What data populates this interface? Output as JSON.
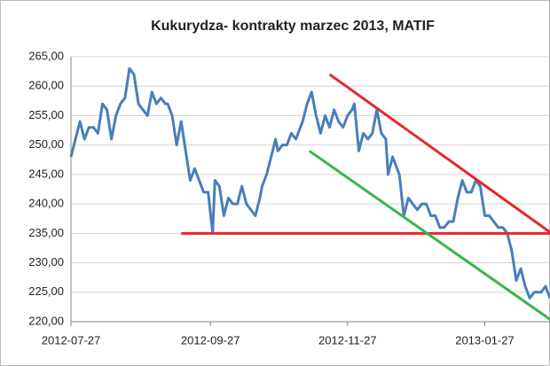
{
  "chart_data": {
    "type": "line",
    "title": "Kukurydza- kontrakty marzec 2013, MATIF",
    "ylim": [
      220,
      265
    ],
    "yticks": [
      {
        "value": 220,
        "label": "220,00"
      },
      {
        "value": 225,
        "label": "225,00"
      },
      {
        "value": 230,
        "label": "230,00"
      },
      {
        "value": 235,
        "label": "235,00"
      },
      {
        "value": 240,
        "label": "240,00"
      },
      {
        "value": 245,
        "label": "245,00"
      },
      {
        "value": 250,
        "label": "250,00"
      },
      {
        "value": 255,
        "label": "255,00"
      },
      {
        "value": 260,
        "label": "260,00"
      },
      {
        "value": 265,
        "label": "265,00"
      }
    ],
    "xlim": [
      "2012-07-27",
      "2013-02-25"
    ],
    "xticks": [
      "2012-07-27",
      "2012-09-27",
      "2012-11-27",
      "2013-01-27"
    ],
    "grid": true,
    "series": [
      {
        "color": "#4a7ebb",
        "x": [
          "2012-07-27",
          "2012-07-29",
          "2012-07-31",
          "2012-08-02",
          "2012-08-04",
          "2012-08-06",
          "2012-08-08",
          "2012-08-10",
          "2012-08-12",
          "2012-08-14",
          "2012-08-16",
          "2012-08-18",
          "2012-08-20",
          "2012-08-22",
          "2012-08-24",
          "2012-08-26",
          "2012-08-28",
          "2012-08-30",
          "2012-09-01",
          "2012-09-03",
          "2012-09-05",
          "2012-09-07",
          "2012-09-08",
          "2012-09-10",
          "2012-09-12",
          "2012-09-14",
          "2012-09-16",
          "2012-09-18",
          "2012-09-20",
          "2012-09-22",
          "2012-09-24",
          "2012-09-26",
          "2012-09-28",
          "2012-09-29",
          "2012-10-01",
          "2012-10-03",
          "2012-10-05",
          "2012-10-07",
          "2012-10-09",
          "2012-10-11",
          "2012-10-13",
          "2012-10-15",
          "2012-10-17",
          "2012-10-19",
          "2012-10-20",
          "2012-10-22",
          "2012-10-24",
          "2012-10-26",
          "2012-10-27",
          "2012-10-29",
          "2012-10-31",
          "2012-11-02",
          "2012-11-04",
          "2012-11-07",
          "2012-11-09",
          "2012-11-11",
          "2012-11-13",
          "2012-11-15",
          "2012-11-17",
          "2012-11-19",
          "2012-11-21",
          "2012-11-23",
          "2012-11-25",
          "2012-11-27",
          "2012-11-29",
          "2012-11-30",
          "2012-12-02",
          "2012-12-04",
          "2012-12-06",
          "2012-12-08",
          "2012-12-10",
          "2012-12-12",
          "2012-12-14",
          "2012-12-15",
          "2012-12-17",
          "2012-12-19",
          "2012-12-20",
          "2012-12-22",
          "2012-12-24",
          "2012-12-26",
          "2012-12-28",
          "2012-12-30",
          "2013-01-01",
          "2013-01-03",
          "2013-01-05",
          "2013-01-07",
          "2013-01-09",
          "2013-01-11",
          "2013-01-13",
          "2013-01-15",
          "2013-01-17",
          "2013-01-19",
          "2013-01-21",
          "2013-01-23",
          "2013-01-25",
          "2013-01-27",
          "2013-01-29",
          "2013-01-31",
          "2013-02-02",
          "2013-02-04",
          "2013-02-06",
          "2013-02-08",
          "2013-02-10",
          "2013-02-12",
          "2013-02-14",
          "2013-02-16",
          "2013-02-18",
          "2013-02-20",
          "2013-02-21",
          "2013-02-23",
          "2013-02-25"
        ],
        "values": [
          248,
          251,
          254,
          251,
          253,
          253,
          252,
          257,
          256,
          251,
          255,
          257,
          258,
          263,
          262,
          257,
          256,
          255,
          259,
          257,
          258,
          257,
          257,
          255,
          250,
          254,
          249,
          244,
          246,
          244,
          242,
          242,
          235,
          244,
          243,
          238,
          241,
          240,
          240,
          243,
          240,
          239,
          238,
          241,
          243,
          245,
          248,
          251,
          249,
          250,
          250,
          252,
          251,
          254,
          257,
          259,
          255,
          252,
          255,
          253,
          256,
          254,
          253,
          255,
          256,
          257,
          249,
          252,
          251,
          252,
          256,
          252,
          251,
          245,
          248,
          246,
          245,
          238,
          241,
          240,
          239,
          240,
          240,
          238,
          238,
          236,
          236,
          237,
          237,
          241,
          244,
          242,
          242,
          244,
          243,
          238,
          238,
          237,
          236,
          236,
          235,
          232,
          227,
          229,
          226,
          224,
          225,
          225,
          225,
          226,
          224
        ]
      },
      {
        "color": "#e8262b",
        "x": [
          "2012-09-14",
          "2013-02-25"
        ],
        "values": [
          235,
          235
        ]
      },
      {
        "color": "#e8262b",
        "x": [
          "2012-11-19",
          "2013-02-25"
        ],
        "values": [
          262,
          235.2
        ]
      },
      {
        "color": "#3cb54a",
        "x": [
          "2012-11-10",
          "2013-02-25"
        ],
        "values": [
          249,
          220.4
        ]
      }
    ]
  }
}
